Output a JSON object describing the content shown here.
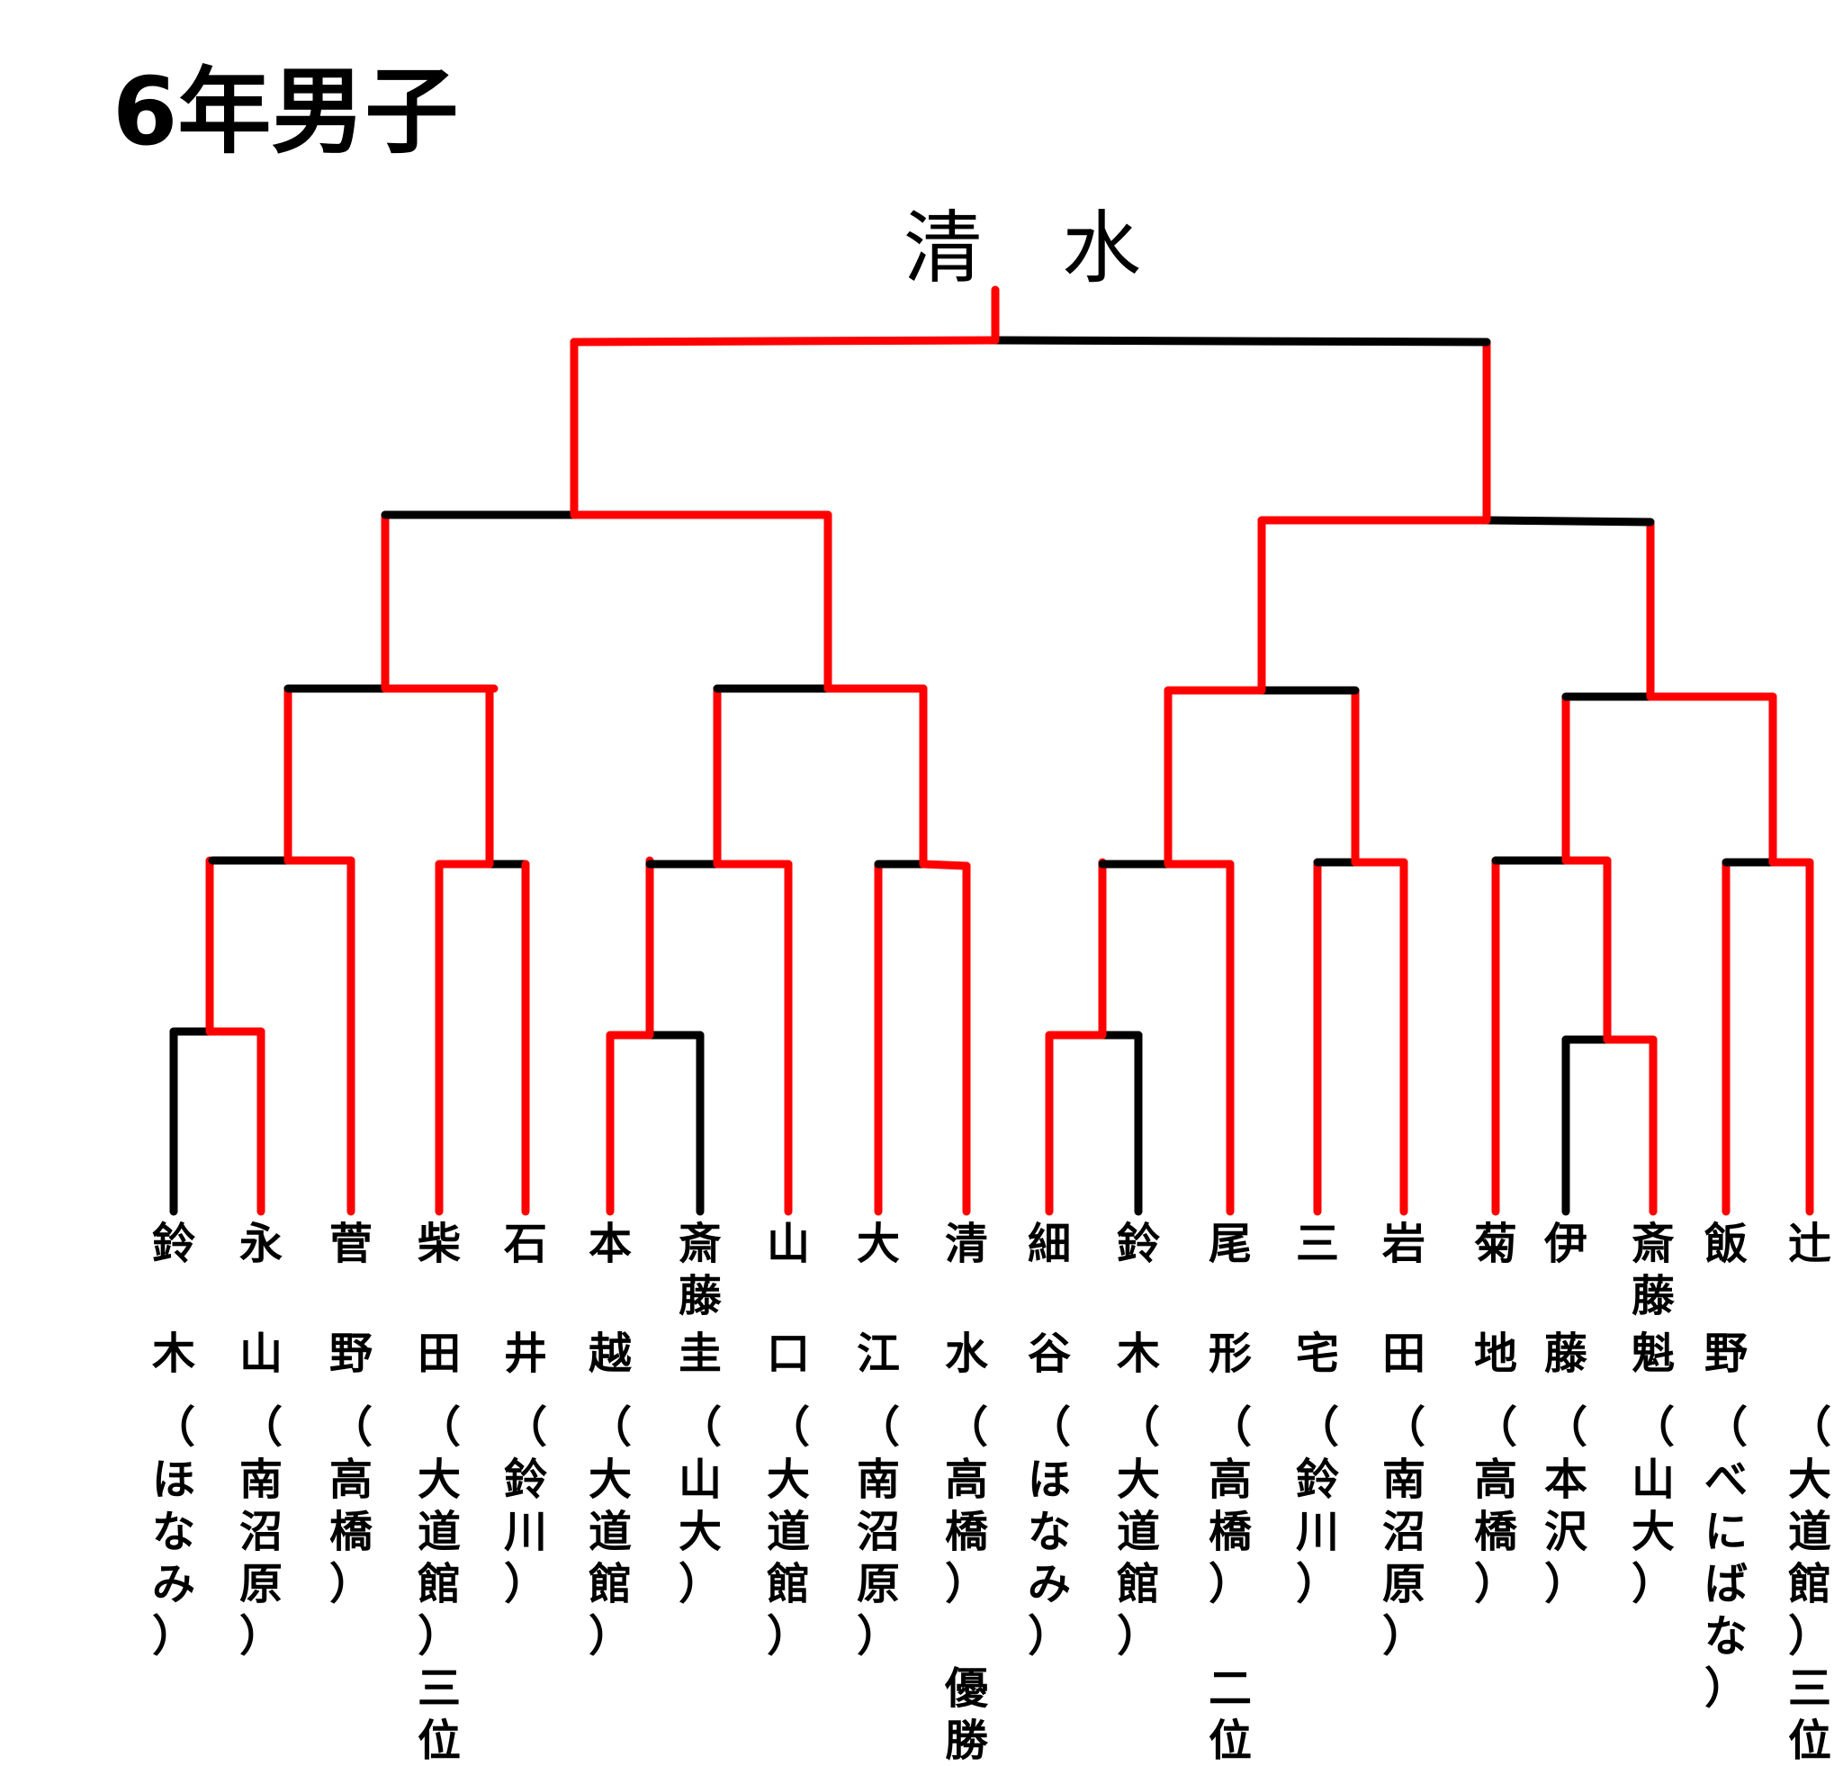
{
  "title": "6年男子",
  "champion": "清　水",
  "colors": {
    "winner_path": "#ff0000",
    "other_path": "#000000"
  },
  "entrants": [
    {
      "chars": [
        [
          "鈴"
        ],
        [
          "木"
        ],
        [
          "（",
          "ほ",
          "な",
          "み",
          "）"
        ]
      ]
    },
    {
      "chars": [
        [
          "永"
        ],
        [
          "山"
        ],
        [
          "（",
          "南",
          "沼",
          "原",
          "）"
        ]
      ]
    },
    {
      "chars": [
        [
          "菅"
        ],
        [
          "野"
        ],
        [
          "（",
          "高",
          "橋",
          "）"
        ]
      ]
    },
    {
      "chars": [
        [
          "柴"
        ],
        [
          "田"
        ],
        [
          "（",
          "大",
          "道",
          "館",
          "）",
          "三",
          "位"
        ]
      ]
    },
    {
      "chars": [
        [
          "石"
        ],
        [
          "井"
        ],
        [
          "（",
          "鈴",
          "川",
          "）"
        ]
      ]
    },
    {
      "chars": [
        [
          "本"
        ],
        [
          "越"
        ],
        [
          "（",
          "大",
          "道",
          "館",
          "）"
        ]
      ]
    },
    {
      "chars": [
        [
          "斎",
          "藤"
        ],
        [
          "圭"
        ],
        [
          "（",
          "山",
          "大",
          "）"
        ]
      ]
    },
    {
      "chars": [
        [
          "山"
        ],
        [
          "口"
        ],
        [
          "（",
          "大",
          "道",
          "館",
          "）"
        ]
      ]
    },
    {
      "chars": [
        [
          "大"
        ],
        [
          "江"
        ],
        [
          "（",
          "南",
          "沼",
          "原",
          "）"
        ]
      ]
    },
    {
      "chars": [
        [
          "清"
        ],
        [
          "水"
        ],
        [
          "（",
          "高",
          "橋",
          "）",
          "",
          "優",
          "勝"
        ]
      ]
    },
    {
      "chars": [
        [
          "細"
        ],
        [
          "谷"
        ],
        [
          "（",
          "ほ",
          "な",
          "み",
          "）"
        ]
      ]
    },
    {
      "chars": [
        [
          "鈴"
        ],
        [
          "木"
        ],
        [
          "（",
          "大",
          "道",
          "館",
          "）"
        ]
      ]
    },
    {
      "chars": [
        [
          "尾"
        ],
        [
          "形"
        ],
        [
          "（",
          "高",
          "橋",
          "）",
          "",
          "二",
          "位"
        ]
      ]
    },
    {
      "chars": [
        [
          "三"
        ],
        [
          "宅"
        ],
        [
          "（",
          "鈴",
          "川",
          "）"
        ]
      ]
    },
    {
      "chars": [
        [
          "岩"
        ],
        [
          "田"
        ],
        [
          "（",
          "南",
          "沼",
          "原",
          "）"
        ]
      ]
    },
    {
      "chars": [
        [
          "菊"
        ],
        [
          "地"
        ],
        [
          "（",
          "高",
          "橋",
          "）"
        ]
      ]
    },
    {
      "chars": [
        [
          "伊"
        ],
        [
          "藤"
        ],
        [
          "（",
          "本",
          "沢",
          "）"
        ]
      ]
    },
    {
      "chars": [
        [
          "斎",
          "藤"
        ],
        [
          "魁"
        ],
        [
          "（",
          "山",
          "大",
          "）"
        ]
      ]
    },
    {
      "chars": [
        [
          "飯"
        ],
        [
          "野"
        ],
        [
          "（",
          "べ",
          "に",
          "ば",
          "な",
          "）"
        ]
      ]
    },
    {
      "chars": [
        [
          "辻"
        ],
        [
          ""
        ],
        [
          "（",
          "大",
          "道",
          "館",
          "）",
          "三",
          "位"
        ]
      ]
    }
  ]
}
